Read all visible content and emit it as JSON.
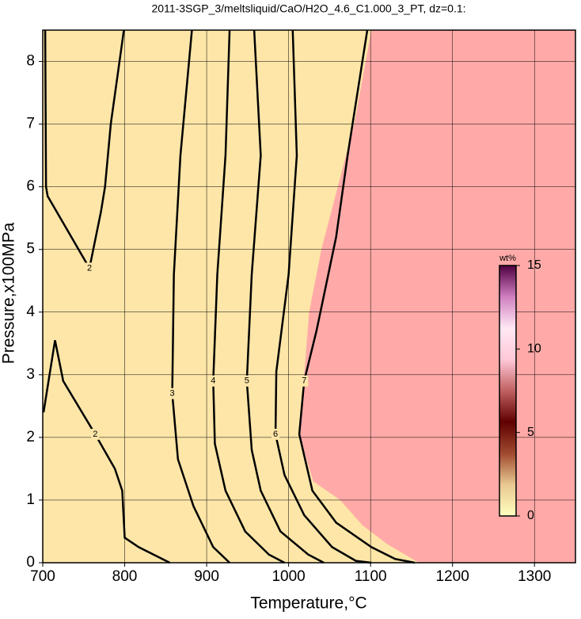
{
  "chart_data": {
    "type": "contour",
    "title": "2011-3SGP_3/meltsliquid/CaO/H2O_4.6_C1.000_3_PT, dz=0.1:",
    "x_label": "Temperature,°C",
    "y_label": "Pressure,x100MPa",
    "xlim": [
      700,
      1350
    ],
    "ylim": [
      0,
      8.5
    ],
    "xticks": [
      700,
      800,
      900,
      1000,
      1100,
      1200,
      1300
    ],
    "yticks": [
      0,
      1,
      2,
      3,
      4,
      5,
      6,
      7,
      8
    ],
    "grid": true,
    "background_color": "#fde6a8",
    "regions": [
      {
        "color": "#ffaaa8",
        "x": [
          1101,
          1080,
          1060,
          1040,
          1025,
          1019,
          1014,
          1030,
          1063,
          1090,
          1120,
          1159,
          1350,
          1350
        ],
        "y": [
          8.5,
          7,
          6,
          5,
          4,
          3,
          2,
          1.3,
          1,
          0.6,
          0.3,
          0,
          0,
          8.5
        ]
      }
    ],
    "contours": [
      {
        "level": "2",
        "x": [
          703,
          704,
          706,
          757,
          771,
          776,
          783,
          799
        ],
        "y": [
          8.5,
          6.0,
          5.85,
          4.7,
          5.6,
          6.0,
          7.0,
          8.5
        ]
      },
      {
        "level": "2",
        "x": [
          701,
          715,
          725,
          764,
          788,
          797,
          800,
          817,
          855
        ],
        "y": [
          2.4,
          3.55,
          2.9,
          2.05,
          1.5,
          1.15,
          0.4,
          0.25,
          0
        ]
      },
      {
        "level": "3",
        "x": [
          882,
          868,
          860,
          858,
          865,
          884,
          908,
          928
        ],
        "y": [
          8.5,
          6.5,
          4.6,
          2.7,
          1.65,
          0.9,
          0.25,
          0
        ]
      },
      {
        "level": "4",
        "x": [
          928,
          923,
          913,
          908,
          910,
          923,
          947,
          976,
          995
        ],
        "y": [
          8.5,
          6.5,
          4.6,
          2.9,
          1.9,
          1.15,
          0.5,
          0.13,
          0
        ]
      },
      {
        "level": "5",
        "x": [
          958,
          966,
          955,
          949,
          955,
          966,
          990,
          1024,
          1043
        ],
        "y": [
          8.5,
          6.5,
          4.6,
          2.9,
          1.8,
          1.15,
          0.5,
          0.13,
          0
        ]
      },
      {
        "level": "6",
        "x": [
          1005,
          1010,
          1000,
          985,
          984,
          995,
          1019,
          1053,
          1082,
          1101
        ],
        "y": [
          8.5,
          6.5,
          4.6,
          3.05,
          2.05,
          1.4,
          0.76,
          0.25,
          0.03,
          0
        ]
      },
      {
        "level": "7",
        "x": [
          1096,
          1072,
          1058,
          1034,
          1019,
          1013,
          1029,
          1058,
          1101,
          1130,
          1154
        ],
        "y": [
          8.5,
          6.5,
          5.2,
          3.7,
          2.9,
          2.05,
          1.15,
          0.64,
          0.25,
          0.06,
          0
        ]
      }
    ],
    "colorbar": {
      "label": "wt%",
      "lim": [
        0,
        15
      ],
      "ticks": [
        0,
        5,
        10,
        15
      ],
      "colors": [
        "#ffffc0",
        "#e8c890",
        "#a04a30",
        "#600000",
        "#c06060",
        "#ffc8d8",
        "#ffe8f4",
        "#d080c0",
        "#500040"
      ]
    }
  }
}
